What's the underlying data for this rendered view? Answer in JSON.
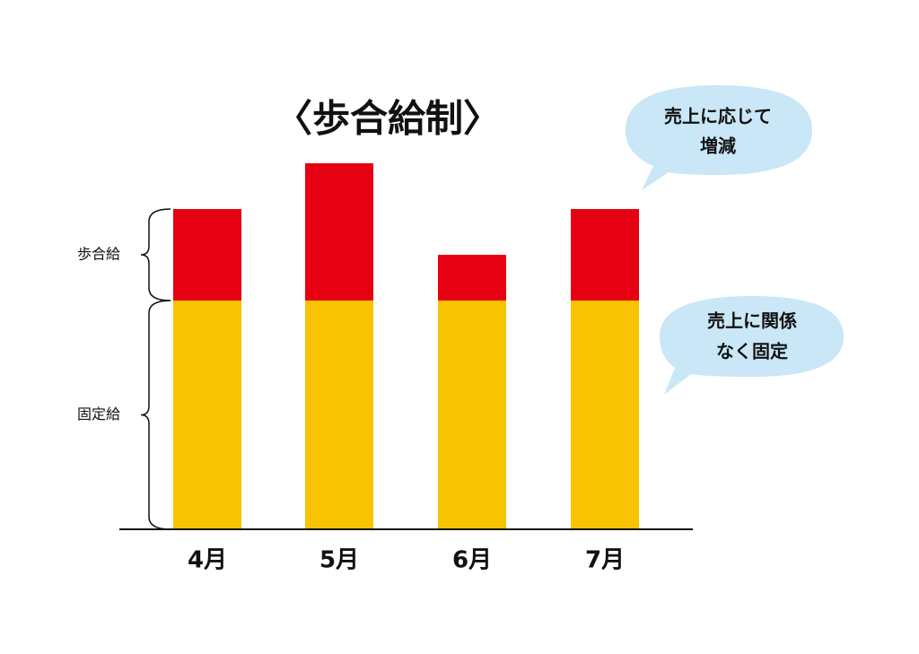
{
  "chart_data": {
    "type": "stacked_bar",
    "title": "〈歩合給制〉",
    "categories": [
      "4月",
      "5月",
      "6月",
      "7月"
    ],
    "series": [
      {
        "name": "固定給",
        "color": "#f8c300",
        "values": [
          5,
          5,
          5,
          5
        ]
      },
      {
        "name": "歩合給",
        "color": "#e60012",
        "values": [
          2,
          3,
          1,
          2
        ]
      }
    ],
    "ylim": [
      0,
      8
    ],
    "annotations": [
      [
        "売上に応じて",
        "増減"
      ],
      [
        "売上に関係",
        "なく固定"
      ]
    ]
  }
}
